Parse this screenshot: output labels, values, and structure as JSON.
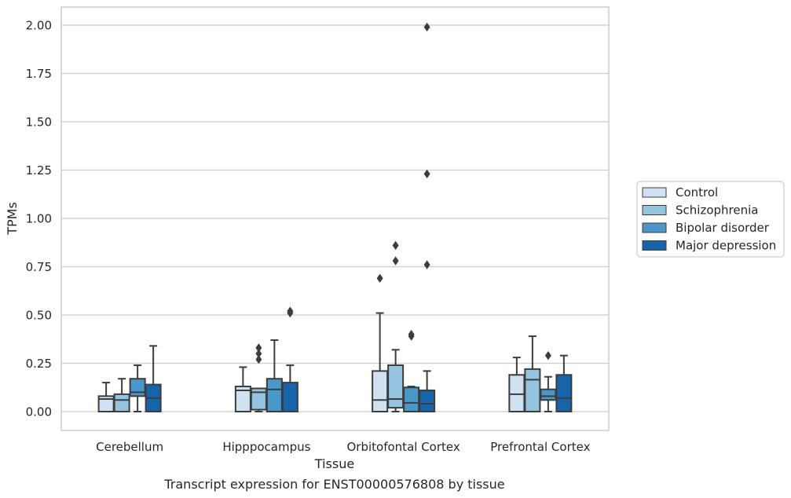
{
  "chart_data": {
    "type": "boxplot",
    "title": "",
    "caption": "Transcript expression for ENST00000576808 by tissue",
    "xlabel": "Tissue",
    "ylabel": "TPMs",
    "ylim": [
      -0.1,
      2.09
    ],
    "yticks": [
      0.0,
      0.25,
      0.5,
      0.75,
      1.0,
      1.25,
      1.5,
      1.75,
      2.0
    ],
    "ytick_labels": [
      "0.00",
      "0.25",
      "0.50",
      "0.75",
      "1.00",
      "1.25",
      "1.50",
      "1.75",
      "2.00"
    ],
    "grid": "horizontal",
    "legend_position": "right",
    "categories": [
      "Cerebellum",
      "Hipppocampus",
      "Orbitofontal Cortex",
      "Prefrontal Cortex"
    ],
    "series": [
      {
        "name": "Control",
        "color": "#d0e1f2",
        "boxes": [
          {
            "whisker_low": 0.0,
            "q1": 0.0,
            "median": 0.065,
            "q3": 0.08,
            "whisker_high": 0.15,
            "outliers": []
          },
          {
            "whisker_low": 0.0,
            "q1": 0.0,
            "median": 0.11,
            "q3": 0.13,
            "whisker_high": 0.23,
            "outliers": []
          },
          {
            "whisker_low": 0.0,
            "q1": 0.0,
            "median": 0.06,
            "q3": 0.21,
            "whisker_high": 0.51,
            "outliers": [
              0.69
            ]
          },
          {
            "whisker_low": 0.0,
            "q1": 0.0,
            "median": 0.09,
            "q3": 0.19,
            "whisker_high": 0.28,
            "outliers": []
          }
        ]
      },
      {
        "name": "Schizophrenia",
        "color": "#94c4df",
        "boxes": [
          {
            "whisker_low": 0.0,
            "q1": 0.0,
            "median": 0.06,
            "q3": 0.09,
            "whisker_high": 0.17,
            "outliers": []
          },
          {
            "whisker_low": 0.0,
            "q1": 0.01,
            "median": 0.1,
            "q3": 0.12,
            "whisker_high": 0.12,
            "outliers": [
              0.27,
              0.3,
              0.33
            ]
          },
          {
            "whisker_low": 0.0,
            "q1": 0.02,
            "median": 0.065,
            "q3": 0.24,
            "whisker_high": 0.32,
            "outliers": [
              0.78,
              0.86
            ]
          },
          {
            "whisker_low": 0.0,
            "q1": 0.0,
            "median": 0.165,
            "q3": 0.22,
            "whisker_high": 0.39,
            "outliers": []
          }
        ]
      },
      {
        "name": "Bipolar disorder",
        "color": "#4a98c9",
        "boxes": [
          {
            "whisker_low": 0.0,
            "q1": 0.08,
            "median": 0.1,
            "q3": 0.17,
            "whisker_high": 0.24,
            "outliers": []
          },
          {
            "whisker_low": 0.0,
            "q1": 0.0,
            "median": 0.115,
            "q3": 0.17,
            "whisker_high": 0.37,
            "outliers": []
          },
          {
            "whisker_low": 0.0,
            "q1": 0.0,
            "median": 0.045,
            "q3": 0.125,
            "whisker_high": 0.13,
            "outliers": [
              0.39,
              0.4
            ]
          },
          {
            "whisker_low": 0.0,
            "q1": 0.06,
            "median": 0.08,
            "q3": 0.115,
            "whisker_high": 0.18,
            "outliers": [
              0.29
            ]
          }
        ]
      },
      {
        "name": "Major depression",
        "color": "#1764ab",
        "boxes": [
          {
            "whisker_low": 0.0,
            "q1": 0.0,
            "median": 0.07,
            "q3": 0.14,
            "whisker_high": 0.34,
            "outliers": []
          },
          {
            "whisker_low": 0.0,
            "q1": 0.0,
            "median": 0.0,
            "q3": 0.15,
            "whisker_high": 0.24,
            "outliers": [
              0.51,
              0.52
            ]
          },
          {
            "whisker_low": 0.0,
            "q1": 0.0,
            "median": 0.04,
            "q3": 0.11,
            "whisker_high": 0.21,
            "outliers": [
              0.76,
              1.23,
              1.99
            ]
          },
          {
            "whisker_low": 0.0,
            "q1": 0.0,
            "median": 0.07,
            "q3": 0.19,
            "whisker_high": 0.29,
            "outliers": []
          }
        ]
      }
    ]
  }
}
